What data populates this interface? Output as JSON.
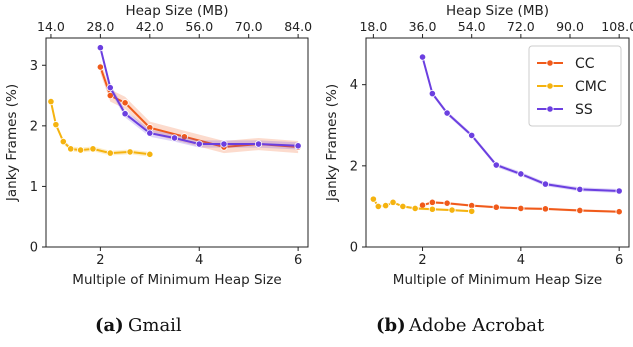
{
  "colors": {
    "CC": "#f05a1a",
    "CMC": "#f5b30f",
    "SS": "#6b3fe0",
    "axis": "#222222"
  },
  "chart_data": [
    {
      "type": "line",
      "caption_tag": "(a)",
      "caption": "Gmail",
      "xlabel": "Multiple of Minimum Heap Size",
      "ylabel": "Janky Frames (%)",
      "top_xlabel": "Heap Size (MB)",
      "xlim": [
        0.9,
        6.2
      ],
      "ylim": [
        0,
        3.45
      ],
      "xticks": [
        2,
        4,
        6
      ],
      "xtick_labels": [
        "2",
        "4",
        "6"
      ],
      "yticks": [
        0,
        1,
        2,
        3
      ],
      "ytick_labels": [
        "0",
        "1",
        "2",
        "3"
      ],
      "top_xticks": [
        1,
        2,
        3,
        4,
        5,
        6
      ],
      "top_xtick_labels": [
        "14.0",
        "28.0",
        "42.0",
        "56.0",
        "70.0",
        "84.0"
      ],
      "legend": null,
      "series": [
        {
          "name": "CC",
          "x": [
            2.0,
            2.2,
            2.5,
            3.0,
            3.7,
            4.5,
            5.2,
            6.0
          ],
          "y": [
            2.97,
            2.5,
            2.38,
            1.97,
            1.82,
            1.65,
            1.7,
            1.65
          ],
          "band": 0.1
        },
        {
          "name": "CMC",
          "x": [
            1.0,
            1.1,
            1.25,
            1.4,
            1.6,
            1.85,
            2.2,
            2.6,
            3.0
          ],
          "y": [
            2.4,
            2.02,
            1.74,
            1.62,
            1.6,
            1.62,
            1.55,
            1.57,
            1.53
          ],
          "band": 0.04
        },
        {
          "name": "SS",
          "x": [
            2.0,
            2.2,
            2.5,
            3.0,
            3.5,
            4.0,
            4.5,
            5.2,
            6.0
          ],
          "y": [
            3.29,
            2.63,
            2.2,
            1.88,
            1.8,
            1.7,
            1.7,
            1.7,
            1.67
          ],
          "band": 0.06
        }
      ]
    },
    {
      "type": "line",
      "caption_tag": "(b)",
      "caption": "Adobe Acrobat",
      "xlabel": "Multiple of Minimum Heap Size",
      "ylabel": "Janky Frames (%)",
      "top_xlabel": "Heap Size (MB)",
      "xlim": [
        0.85,
        6.2
      ],
      "ylim": [
        0,
        5.15
      ],
      "xticks": [
        2,
        4,
        6
      ],
      "xtick_labels": [
        "2",
        "4",
        "6"
      ],
      "yticks": [
        0,
        2,
        4
      ],
      "ytick_labels": [
        "0",
        "2",
        "4"
      ],
      "top_xticks": [
        1,
        2,
        3,
        4,
        5,
        6
      ],
      "top_xtick_labels": [
        "18.0",
        "36.0",
        "54.0",
        "72.0",
        "90.0",
        "108.0"
      ],
      "legend": "top-right",
      "series": [
        {
          "name": "CC",
          "x": [
            2.0,
            2.2,
            2.5,
            3.0,
            3.5,
            4.0,
            4.5,
            5.2,
            6.0
          ],
          "y": [
            1.03,
            1.1,
            1.08,
            1.02,
            0.98,
            0.95,
            0.94,
            0.9,
            0.87
          ],
          "band": 0.03
        },
        {
          "name": "CMC",
          "x": [
            1.0,
            1.1,
            1.25,
            1.4,
            1.6,
            1.85,
            2.2,
            2.6,
            3.0
          ],
          "y": [
            1.18,
            1.0,
            1.02,
            1.1,
            1.0,
            0.95,
            0.93,
            0.91,
            0.88
          ],
          "band": 0.03
        },
        {
          "name": "SS",
          "x": [
            2.0,
            2.2,
            2.5,
            3.0,
            3.5,
            4.0,
            4.5,
            5.2,
            6.0
          ],
          "y": [
            4.68,
            3.78,
            3.3,
            2.75,
            2.02,
            1.8,
            1.55,
            1.42,
            1.38
          ],
          "band": 0.05
        }
      ]
    }
  ]
}
